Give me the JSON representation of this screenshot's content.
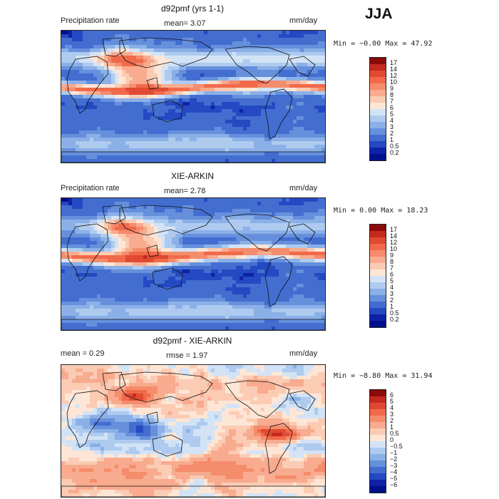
{
  "season": "JJA",
  "panels": [
    {
      "title": "d92pmf (yrs 1-1)",
      "variable": "Precipitation rate",
      "stat1": "mean=   3.07",
      "stat2": "",
      "units": "mm/day",
      "minmax": "Min =  −0.00 Max =  47.92",
      "colorbar": {
        "labels": [
          "17",
          "14",
          "12",
          "10",
          "9",
          "8",
          "7",
          "6",
          "5",
          "4",
          "3",
          "2",
          "1",
          "0.5",
          "0.2"
        ],
        "colors": [
          "#8b0a0a",
          "#c42a1e",
          "#e04a32",
          "#f06a4a",
          "#f58c6c",
          "#f8ab8e",
          "#fbcbb3",
          "#fde6d6",
          "#d3e3f6",
          "#aecbef",
          "#8bb0e8",
          "#6690dc",
          "#436ed0",
          "#2449c2",
          "#0d22a6",
          "#00108a"
        ]
      },
      "map_style": "model"
    },
    {
      "title": "XIE-ARKIN",
      "variable": "Precipitation rate",
      "stat1": "mean=   2.78",
      "stat2": "",
      "units": "mm/day",
      "minmax": "Min =   0.00 Max =  18.23",
      "colorbar": {
        "labels": [
          "17",
          "14",
          "12",
          "10",
          "9",
          "8",
          "7",
          "6",
          "5",
          "4",
          "3",
          "2",
          "1",
          "0.5",
          "0.2"
        ],
        "colors": [
          "#8b0a0a",
          "#c42a1e",
          "#e04a32",
          "#f06a4a",
          "#f58c6c",
          "#f8ab8e",
          "#fbcbb3",
          "#fde6d6",
          "#d3e3f6",
          "#aecbef",
          "#8bb0e8",
          "#6690dc",
          "#436ed0",
          "#2449c2",
          "#0d22a6",
          "#00108a"
        ]
      },
      "map_style": "obs"
    },
    {
      "title": "d92pmf - XIE-ARKIN",
      "variable": "",
      "stat1": "mean =   0.29",
      "stat2": "rmse =   1.97",
      "units": "mm/day",
      "minmax": "Min =  −8.80 Max =  31.94",
      "colorbar": {
        "labels": [
          "6",
          "5",
          "4",
          "3",
          "2",
          "1",
          "0.5",
          "0",
          "−0.5",
          "−1",
          "−2",
          "−3",
          "−4",
          "−5",
          "−6"
        ],
        "colors": [
          "#8b0a0a",
          "#c42a1e",
          "#e04a32",
          "#f06a4a",
          "#f58c6c",
          "#f8ab8e",
          "#fbcbb3",
          "#fde6d6",
          "#d3e3f6",
          "#aecbef",
          "#8bb0e8",
          "#6690dc",
          "#436ed0",
          "#2449c2",
          "#0d22a6",
          "#00108a"
        ]
      },
      "map_style": "diff"
    }
  ]
}
